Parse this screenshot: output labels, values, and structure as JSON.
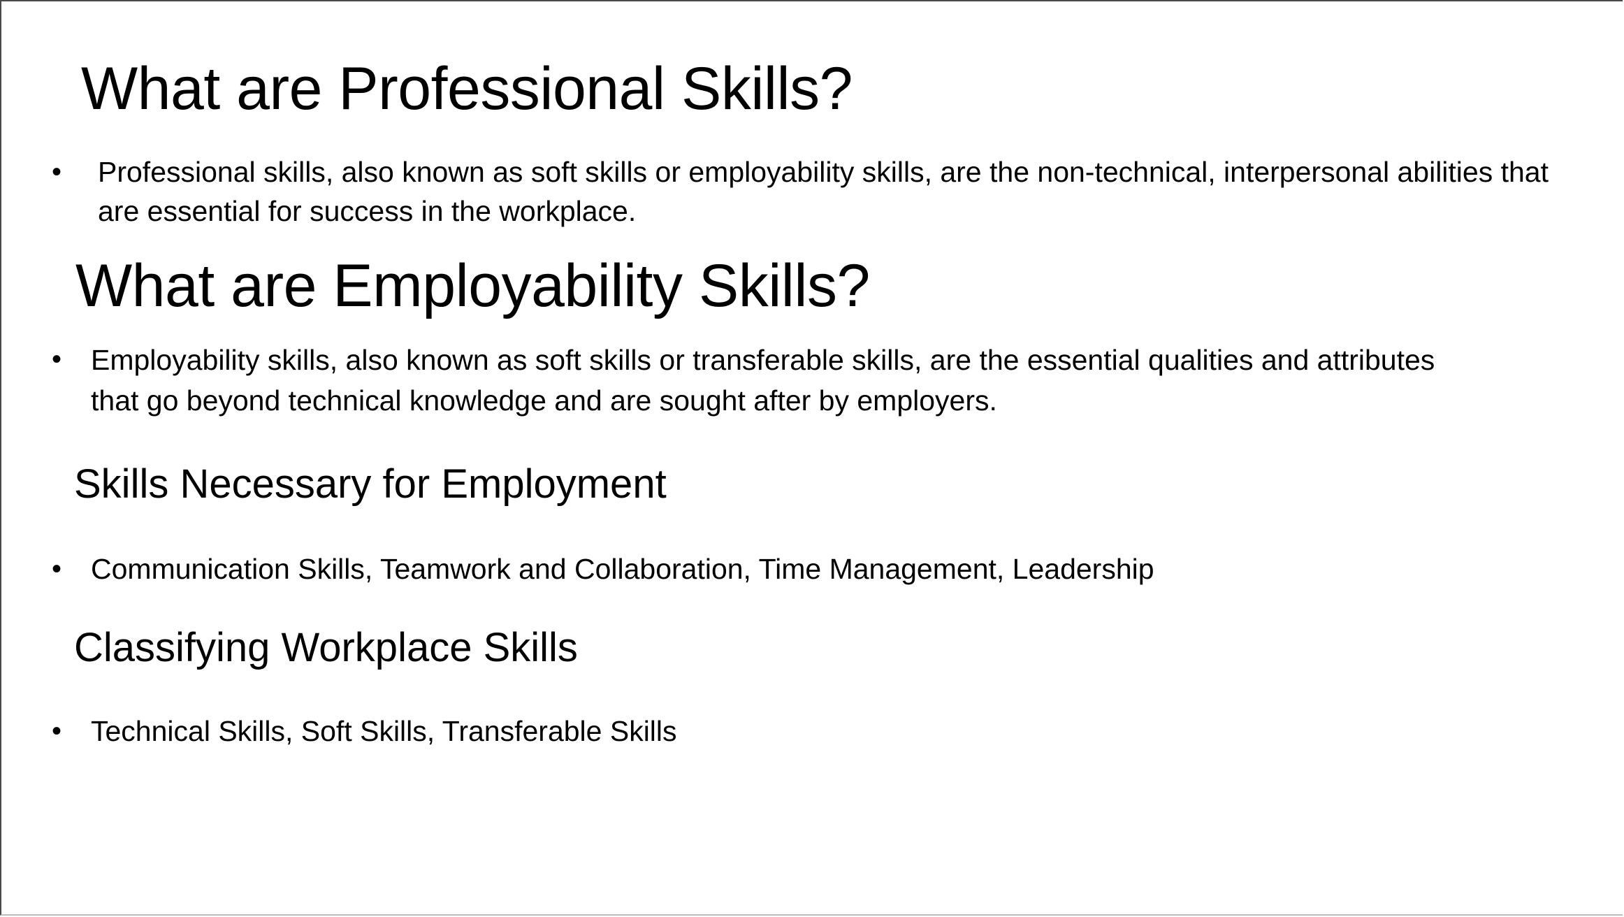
{
  "slide": {
    "title": "What are Professional Skills?",
    "professional_definition": "Professional skills, also known as soft skills or employability skills, are the non-technical, interpersonal abilities that are essential for success in the workplace.",
    "second_title": "What are Employability Skills?",
    "employability_definition": "Employability skills, also known as soft skills or transferable skills, are the essential qualities and attributes that go beyond technical knowledge and are sought after by employers.",
    "necessary_heading": "Skills Necessary for Employment",
    "necessary_list": "Communication Skills, Teamwork and Collaboration, Time Management, Leadership",
    "classifying_heading": "Classifying Workplace Skills",
    "classifying_list": "Technical Skills, Soft Skills, Transferable Skills",
    "bullet_symbol": "•"
  }
}
